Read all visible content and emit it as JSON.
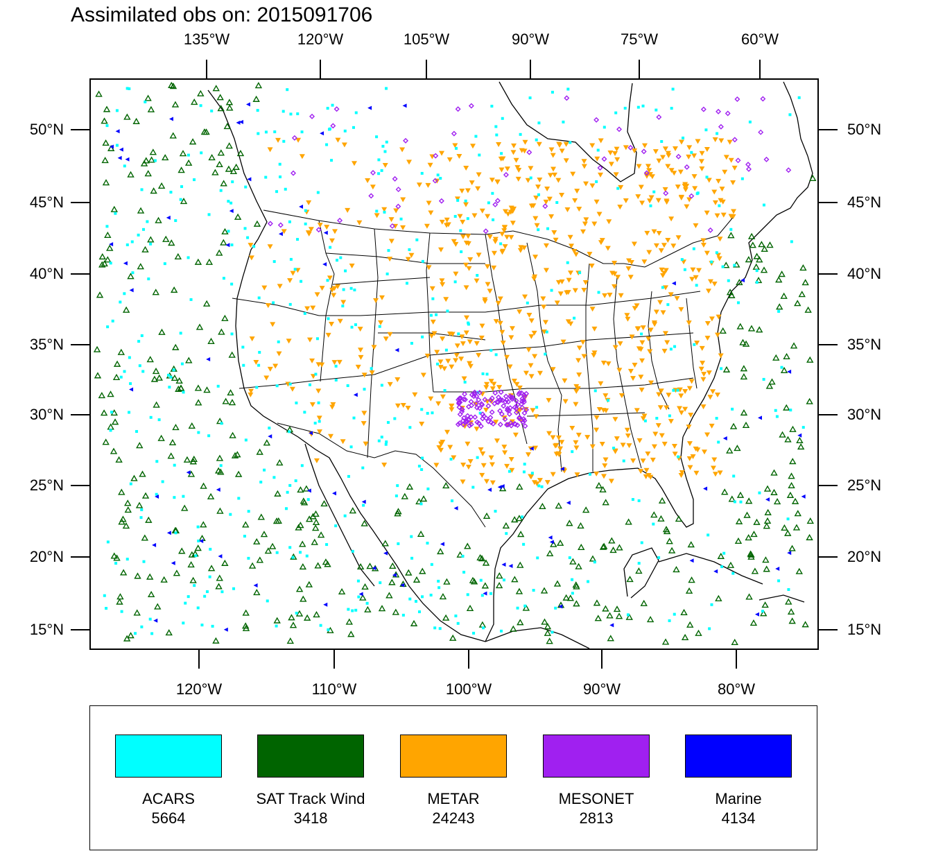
{
  "title": "Assimilated obs on: 2015091706",
  "axes": {
    "top": [
      "135°W",
      "120°W",
      "105°W",
      "90°W",
      "75°W",
      "60°W"
    ],
    "bottom": [
      "120°W",
      "110°W",
      "100°W",
      "90°W",
      "80°W"
    ],
    "lat": [
      "50°N",
      "45°N",
      "40°N",
      "35°N",
      "30°N",
      "25°N",
      "20°N",
      "15°N"
    ]
  },
  "legend": [
    {
      "name": "ACARS",
      "count": "5664",
      "color": "#00ffff"
    },
    {
      "name": "SAT Track Wind",
      "count": "3418",
      "color": "#006400"
    },
    {
      "name": "METAR",
      "count": "24243",
      "color": "#ffa500"
    },
    {
      "name": "MESONET",
      "count": "2813",
      "color": "#a020f0"
    },
    {
      "name": "Marine",
      "count": "4134",
      "color": "#0000ff"
    }
  ],
  "icons": {
    "acars": "small-square",
    "sat_track_wind": "triangle-up-outline",
    "metar": "triangle-down",
    "mesonet": "diamond",
    "marine": "triangle-left"
  }
}
